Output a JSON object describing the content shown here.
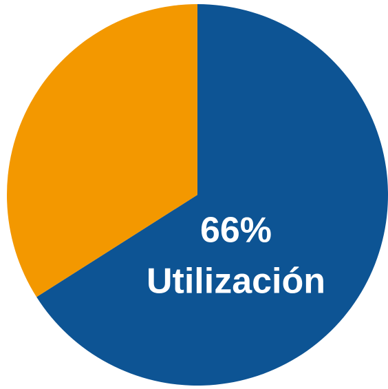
{
  "chart_data": {
    "type": "pie",
    "categories": [
      "Utilización",
      null
    ],
    "values": [
      66,
      34
    ],
    "value_labels": [
      "66%",
      null
    ],
    "colors": [
      "#0d5494",
      "#f39800"
    ]
  }
}
